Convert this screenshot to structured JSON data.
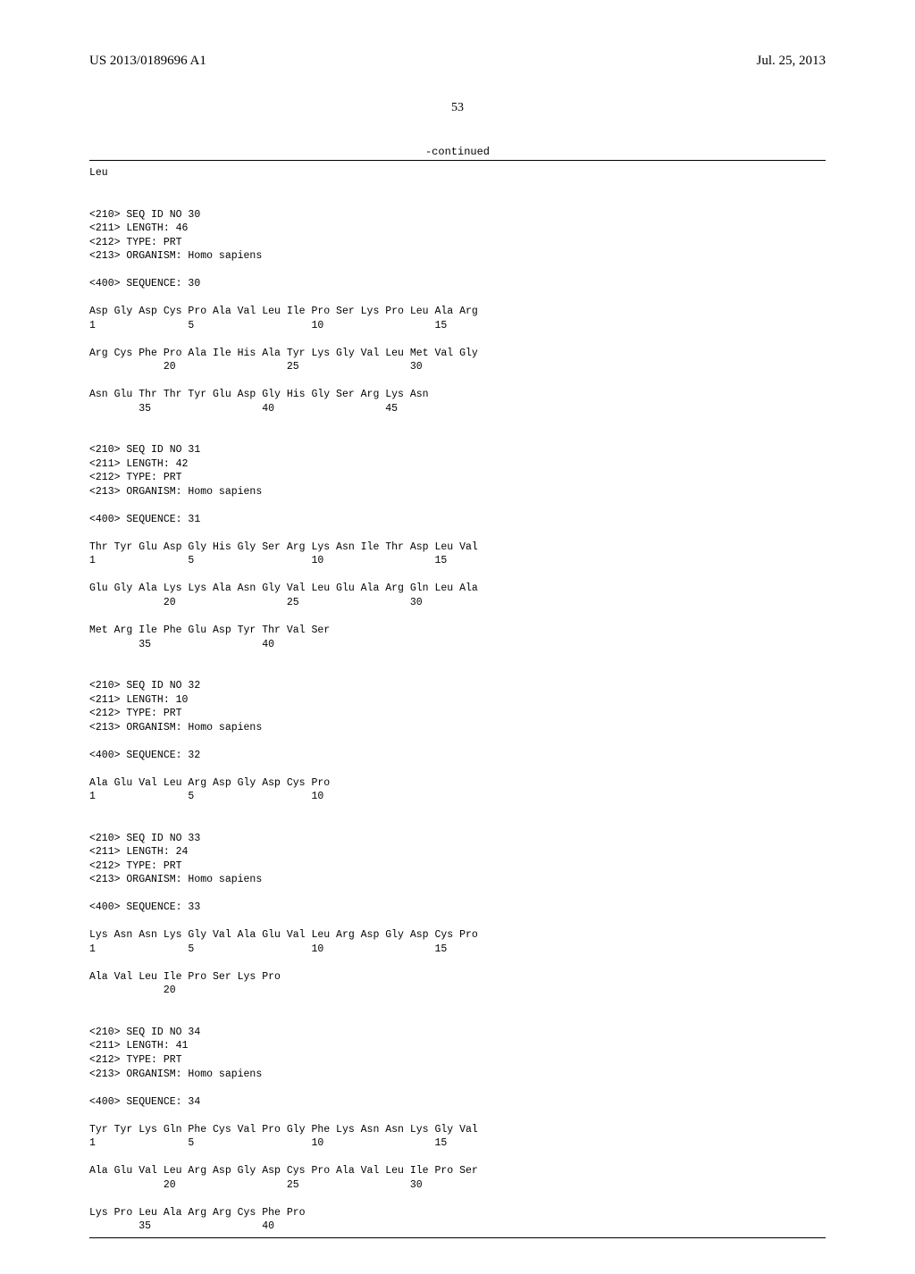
{
  "header": {
    "pub_num": "US 2013/0189696 A1",
    "pub_date": "Jul. 25, 2013",
    "page_num": "53",
    "continued": "-continued"
  },
  "listing": "Leu\n\n\n<210> SEQ ID NO 30\n<211> LENGTH: 46\n<212> TYPE: PRT\n<213> ORGANISM: Homo sapiens\n\n<400> SEQUENCE: 30\n\nAsp Gly Asp Cys Pro Ala Val Leu Ile Pro Ser Lys Pro Leu Ala Arg\n1               5                   10                  15\n\nArg Cys Phe Pro Ala Ile His Ala Tyr Lys Gly Val Leu Met Val Gly\n            20                  25                  30\n\nAsn Glu Thr Thr Tyr Glu Asp Gly His Gly Ser Arg Lys Asn\n        35                  40                  45\n\n\n<210> SEQ ID NO 31\n<211> LENGTH: 42\n<212> TYPE: PRT\n<213> ORGANISM: Homo sapiens\n\n<400> SEQUENCE: 31\n\nThr Tyr Glu Asp Gly His Gly Ser Arg Lys Asn Ile Thr Asp Leu Val\n1               5                   10                  15\n\nGlu Gly Ala Lys Lys Ala Asn Gly Val Leu Glu Ala Arg Gln Leu Ala\n            20                  25                  30\n\nMet Arg Ile Phe Glu Asp Tyr Thr Val Ser\n        35                  40\n\n\n<210> SEQ ID NO 32\n<211> LENGTH: 10\n<212> TYPE: PRT\n<213> ORGANISM: Homo sapiens\n\n<400> SEQUENCE: 32\n\nAla Glu Val Leu Arg Asp Gly Asp Cys Pro\n1               5                   10\n\n\n<210> SEQ ID NO 33\n<211> LENGTH: 24\n<212> TYPE: PRT\n<213> ORGANISM: Homo sapiens\n\n<400> SEQUENCE: 33\n\nLys Asn Asn Lys Gly Val Ala Glu Val Leu Arg Asp Gly Asp Cys Pro\n1               5                   10                  15\n\nAla Val Leu Ile Pro Ser Lys Pro\n            20\n\n\n<210> SEQ ID NO 34\n<211> LENGTH: 41\n<212> TYPE: PRT\n<213> ORGANISM: Homo sapiens\n\n<400> SEQUENCE: 34\n\nTyr Tyr Lys Gln Phe Cys Val Pro Gly Phe Lys Asn Asn Lys Gly Val\n1               5                   10                  15\n\nAla Glu Val Leu Arg Asp Gly Asp Cys Pro Ala Val Leu Ile Pro Ser\n            20                  25                  30\n\nLys Pro Leu Ala Arg Arg Cys Phe Pro\n        35                  40\n"
}
